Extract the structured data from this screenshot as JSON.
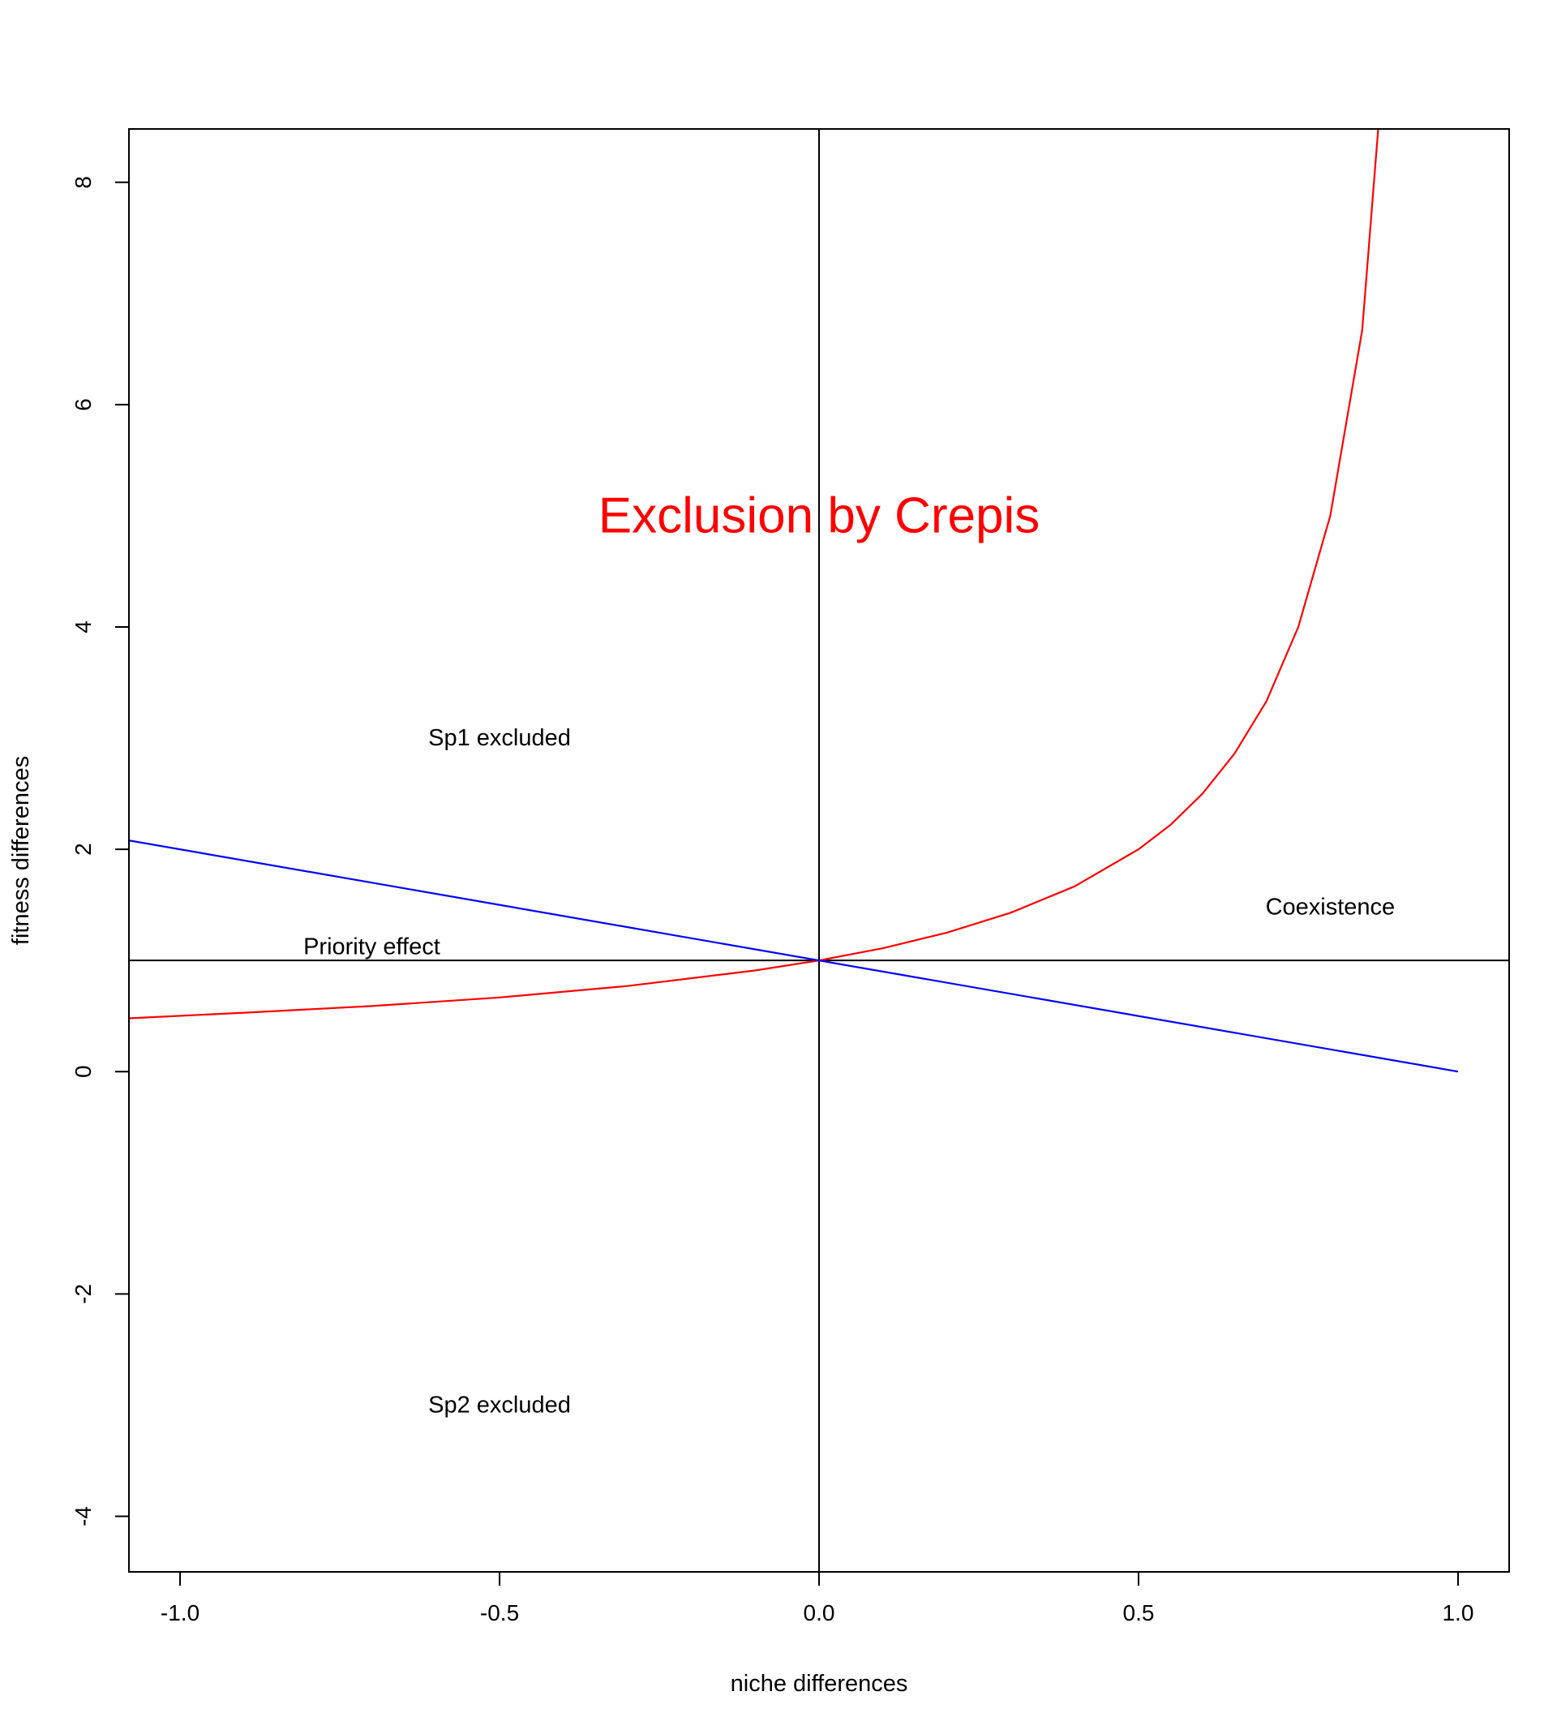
{
  "chart_data": {
    "type": "line",
    "title": "",
    "xlabel": "niche differences",
    "ylabel": "fitness differences",
    "xlim": [
      -1.08,
      1.08
    ],
    "ylim": [
      -4.5,
      8.48
    ],
    "x_ticks": [
      -1.0,
      -0.5,
      0.0,
      0.5,
      1.0
    ],
    "x_tick_labels": [
      "-1.0",
      "-0.5",
      "0.0",
      "0.5",
      "1.0"
    ],
    "y_ticks": [
      -4,
      -2,
      0,
      2,
      4,
      6,
      8
    ],
    "y_tick_labels": [
      "-4",
      "-2",
      "0",
      "2",
      "4",
      "6",
      "8"
    ],
    "grid": false,
    "legend": "none",
    "reference_lines": [
      {
        "orientation": "horizontal",
        "value": 1,
        "color": "#000000"
      },
      {
        "orientation": "vertical",
        "value": 0,
        "color": "#000000"
      }
    ],
    "series": [
      {
        "color": "#ff0000",
        "x": [
          -1.08,
          -0.9,
          -0.7,
          -0.5,
          -0.3,
          -0.1,
          0.0,
          0.1,
          0.2,
          0.3,
          0.4,
          0.5,
          0.55,
          0.6,
          0.65,
          0.7,
          0.75,
          0.8,
          0.85,
          0.875
        ],
        "y": [
          0.48,
          0.53,
          0.59,
          0.667,
          0.77,
          0.91,
          1.0,
          1.11,
          1.25,
          1.43,
          1.667,
          2.0,
          2.22,
          2.5,
          2.86,
          3.33,
          4.0,
          5.0,
          6.67,
          8.48
        ]
      },
      {
        "color": "#0000ff",
        "x": [
          -1.08,
          1.0
        ],
        "y": [
          2.08,
          0.0
        ]
      }
    ],
    "annotations": [
      {
        "text": "Exclusion by Crepis",
        "x": 0.0,
        "y": 5.0,
        "color": "#ff0000"
      },
      {
        "text": "Sp1 excluded",
        "x": -0.5,
        "y": 3.0,
        "color": "#000000"
      },
      {
        "text": "Sp2 excluded",
        "x": -0.5,
        "y": -3.0,
        "color": "#000000"
      },
      {
        "text": "Priority effect",
        "x": -0.7,
        "y": 1.12,
        "color": "#000000"
      },
      {
        "text": "Coexistence",
        "x": 0.8,
        "y": 1.48,
        "color": "#000000"
      }
    ]
  }
}
